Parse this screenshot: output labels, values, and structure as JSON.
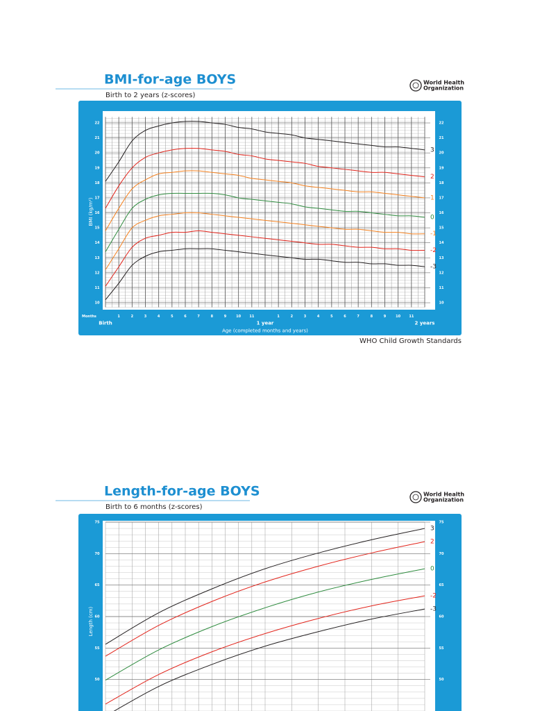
{
  "chart_data": [
    {
      "type": "line",
      "title": "BMI-for-age BOYS",
      "subtitle": "Birth to 2 years (z-scores)",
      "organization": [
        "World Health",
        "Organization"
      ],
      "y_label": "BMI (kg/m²)",
      "x_label": "Age (completed months and years)",
      "x_unit_label": "Months",
      "footer": "WHO Child Growth Standards",
      "x": [
        0,
        1,
        2,
        3,
        4,
        5,
        6,
        7,
        8,
        9,
        10,
        11,
        12,
        13,
        14,
        15,
        16,
        17,
        18,
        19,
        20,
        21,
        22,
        23,
        24
      ],
      "xlim": [
        0,
        24
      ],
      "xticks": [
        {
          "value": 0,
          "label": "Birth"
        },
        1,
        2,
        3,
        4,
        5,
        6,
        7,
        8,
        9,
        10,
        11,
        {
          "value": 12,
          "label": "1 year"
        },
        {
          "value": 13,
          "label": "1"
        },
        {
          "value": 14,
          "label": "2"
        },
        {
          "value": 15,
          "label": "3"
        },
        {
          "value": 16,
          "label": "4"
        },
        {
          "value": 17,
          "label": "5"
        },
        {
          "value": 18,
          "label": "6"
        },
        {
          "value": 19,
          "label": "7"
        },
        {
          "value": 20,
          "label": "8"
        },
        {
          "value": 21,
          "label": "9"
        },
        {
          "value": 22,
          "label": "10"
        },
        {
          "value": 23,
          "label": "11"
        },
        {
          "value": 24,
          "label": "2 years"
        }
      ],
      "ylim": [
        9.7,
        22.4
      ],
      "yticks": [
        10,
        11,
        12,
        13,
        14,
        15,
        16,
        17,
        18,
        19,
        20,
        21,
        22
      ],
      "grid": true,
      "series": [
        {
          "name": "3",
          "color": "#231f20",
          "values": [
            18.1,
            19.4,
            20.8,
            21.5,
            21.8,
            22.0,
            22.1,
            22.1,
            22.0,
            21.9,
            21.7,
            21.6,
            21.4,
            21.3,
            21.2,
            21.0,
            20.9,
            20.8,
            20.7,
            20.6,
            20.5,
            20.4,
            20.4,
            20.3,
            20.2
          ]
        },
        {
          "name": "2",
          "color": "#e2231a",
          "values": [
            16.3,
            17.8,
            19.0,
            19.7,
            20.0,
            20.2,
            20.3,
            20.3,
            20.2,
            20.1,
            19.9,
            19.8,
            19.6,
            19.5,
            19.4,
            19.3,
            19.1,
            19.0,
            18.9,
            18.8,
            18.7,
            18.7,
            18.6,
            18.5,
            18.4
          ]
        },
        {
          "name": "1",
          "color": "#f58220",
          "values": [
            14.8,
            16.3,
            17.6,
            18.2,
            18.6,
            18.7,
            18.8,
            18.8,
            18.7,
            18.6,
            18.5,
            18.3,
            18.2,
            18.1,
            18.0,
            17.8,
            17.7,
            17.6,
            17.5,
            17.4,
            17.4,
            17.3,
            17.2,
            17.1,
            17.0
          ]
        },
        {
          "name": "0",
          "color": "#2e8b3e",
          "values": [
            13.4,
            14.9,
            16.3,
            16.9,
            17.2,
            17.3,
            17.3,
            17.3,
            17.3,
            17.2,
            17.0,
            16.9,
            16.8,
            16.7,
            16.6,
            16.4,
            16.3,
            16.2,
            16.1,
            16.1,
            16.0,
            15.9,
            15.8,
            15.8,
            15.7
          ]
        },
        {
          "name": "-1",
          "color": "#f58220",
          "values": [
            12.2,
            13.6,
            15.0,
            15.5,
            15.8,
            15.9,
            16.0,
            16.0,
            15.9,
            15.8,
            15.7,
            15.6,
            15.5,
            15.4,
            15.3,
            15.2,
            15.1,
            15.0,
            14.9,
            14.9,
            14.8,
            14.7,
            14.7,
            14.6,
            14.6
          ]
        },
        {
          "name": "-2",
          "color": "#e2231a",
          "values": [
            11.1,
            12.4,
            13.7,
            14.3,
            14.5,
            14.7,
            14.7,
            14.8,
            14.7,
            14.6,
            14.5,
            14.4,
            14.3,
            14.2,
            14.1,
            14.0,
            13.9,
            13.9,
            13.8,
            13.7,
            13.7,
            13.6,
            13.6,
            13.5,
            13.5
          ]
        },
        {
          "name": "-3",
          "color": "#231f20",
          "values": [
            10.2,
            11.3,
            12.5,
            13.1,
            13.4,
            13.5,
            13.6,
            13.6,
            13.6,
            13.5,
            13.4,
            13.3,
            13.2,
            13.1,
            13.0,
            12.9,
            12.9,
            12.8,
            12.7,
            12.7,
            12.6,
            12.6,
            12.5,
            12.5,
            12.4
          ]
        }
      ]
    },
    {
      "type": "line",
      "title": "Length-for-age BOYS",
      "subtitle": "Birth to 6 months (z-scores)",
      "organization": [
        "World Health",
        "Organization"
      ],
      "y_label": "Length (cm)",
      "x": [
        0,
        1,
        2,
        3,
        4,
        5,
        6
      ],
      "xlim": [
        0,
        6
      ],
      "ylim": [
        45,
        75
      ],
      "yticks": [
        50,
        55,
        60,
        65,
        70,
        75
      ],
      "grid": true,
      "series": [
        {
          "name": "3",
          "color": "#231f20",
          "values": [
            55.6,
            60.6,
            64.4,
            67.6,
            70.1,
            72.2,
            74.0
          ]
        },
        {
          "name": "2",
          "color": "#e2231a",
          "values": [
            53.7,
            58.6,
            62.4,
            65.5,
            68.0,
            70.1,
            71.9
          ]
        },
        {
          "name": "0",
          "color": "#2e8b3e",
          "values": [
            49.9,
            54.7,
            58.4,
            61.4,
            63.9,
            65.9,
            67.6
          ]
        },
        {
          "name": "-2",
          "color": "#e2231a",
          "values": [
            46.1,
            50.8,
            54.4,
            57.3,
            59.7,
            61.7,
            63.3
          ]
        },
        {
          "name": "-3",
          "color": "#231f20",
          "values": [
            44.2,
            48.9,
            52.4,
            55.3,
            57.6,
            59.6,
            61.2
          ]
        }
      ]
    }
  ]
}
